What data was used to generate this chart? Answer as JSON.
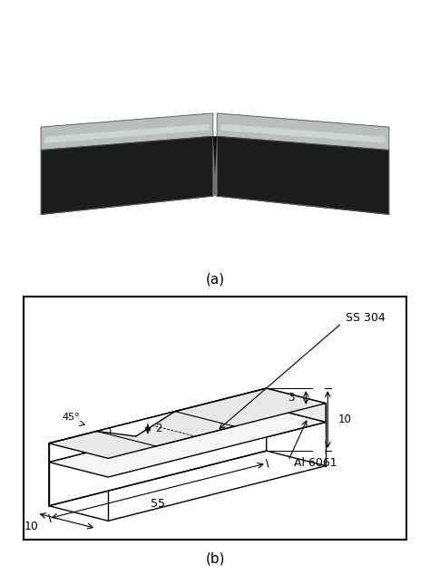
{
  "label_a": "(a)",
  "label_b": "(b)",
  "photo_bg": "#8B1A1A",
  "label_ss304": "SS 304",
  "label_al6061": "Al 6061",
  "dim_55": "55",
  "dim_10_bottom": "10",
  "dim_10_right": "10",
  "dim_3": "3",
  "dim_2": "2",
  "dim_45": "45°",
  "figsize": [
    4.74,
    6.34
  ],
  "dpi": 100
}
